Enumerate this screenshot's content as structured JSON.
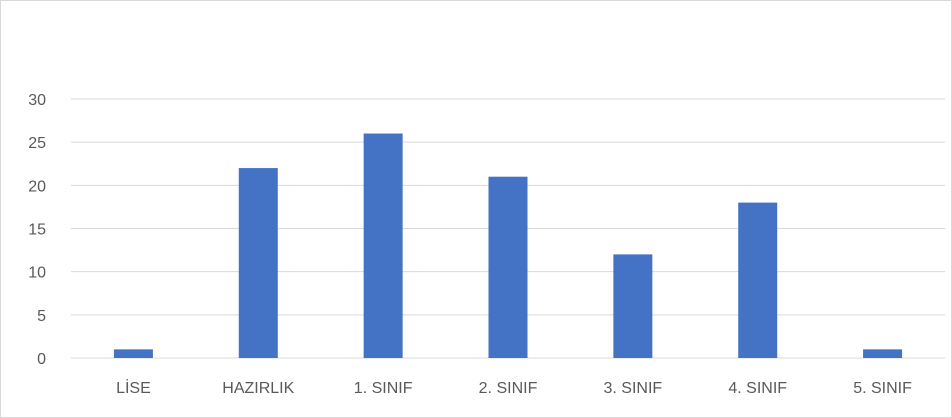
{
  "chart_data": {
    "type": "bar",
    "categories": [
      "LİSE",
      "HAZIRLIK",
      "1. SINIF",
      "2. SINIF",
      "3. SINIF",
      "4. SINIF",
      "5. SINIF"
    ],
    "values": [
      1,
      22,
      26,
      21,
      12,
      18,
      1
    ],
    "ylim": [
      0,
      30
    ],
    "yticks": [
      0,
      5,
      10,
      15,
      20,
      25,
      30
    ],
    "grid": true,
    "legend": "none",
    "bar_color": "#4472c4",
    "grid_color": "#d9d9d9",
    "text_color": "#595959"
  }
}
